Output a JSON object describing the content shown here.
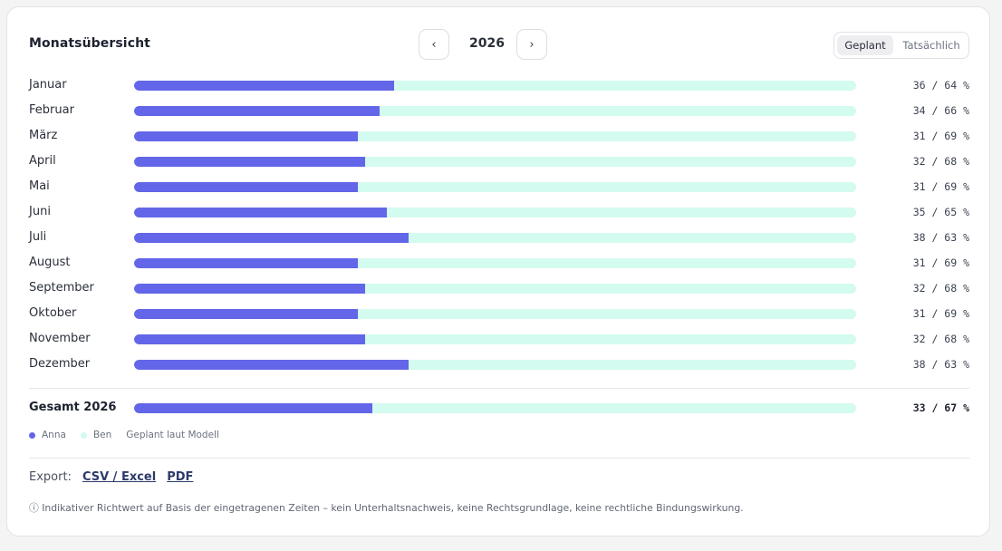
{
  "title": "Monatsübersicht",
  "year": "2026",
  "nav": {
    "prev_glyph": "‹",
    "next_glyph": "›"
  },
  "toggle": {
    "planned": "Geplant",
    "actual": "Tatsächlich",
    "selected": "planned"
  },
  "colors": {
    "anna": "#6366e8",
    "ben": "#d3fbef"
  },
  "months": [
    {
      "name": "Januar",
      "anna": 36,
      "ben": 64,
      "pct": "36 / 64 %"
    },
    {
      "name": "Februar",
      "anna": 34,
      "ben": 66,
      "pct": "34 / 66 %"
    },
    {
      "name": "März",
      "anna": 31,
      "ben": 69,
      "pct": "31 / 69 %"
    },
    {
      "name": "April",
      "anna": 32,
      "ben": 68,
      "pct": "32 / 68 %"
    },
    {
      "name": "Mai",
      "anna": 31,
      "ben": 69,
      "pct": "31 / 69 %"
    },
    {
      "name": "Juni",
      "anna": 35,
      "ben": 65,
      "pct": "35 / 65 %"
    },
    {
      "name": "Juli",
      "anna": 38,
      "ben": 63,
      "pct": "38 / 63 %"
    },
    {
      "name": "August",
      "anna": 31,
      "ben": 69,
      "pct": "31 / 69 %"
    },
    {
      "name": "September",
      "anna": 32,
      "ben": 68,
      "pct": "32 / 68 %"
    },
    {
      "name": "Oktober",
      "anna": 31,
      "ben": 69,
      "pct": "31 / 69 %"
    },
    {
      "name": "November",
      "anna": 32,
      "ben": 68,
      "pct": "32 / 68 %"
    },
    {
      "name": "Dezember",
      "anna": 38,
      "ben": 63,
      "pct": "38 / 63 %"
    }
  ],
  "total": {
    "label": "Gesamt 2026",
    "anna": 33,
    "ben": 67,
    "pct": "33 / 67 %"
  },
  "legend": {
    "anna": "Anna",
    "ben": "Ben",
    "note": "Geplant laut Modell"
  },
  "export": {
    "label": "Export:",
    "csv": "CSV / Excel",
    "pdf": "PDF"
  },
  "disclaimer": "ⓘ Indikativer Richtwert auf Basis der eingetragenen Zeiten – kein Unterhaltsnachweis, keine Rechtsgrundlage, keine rechtliche Bindungswirkung."
}
